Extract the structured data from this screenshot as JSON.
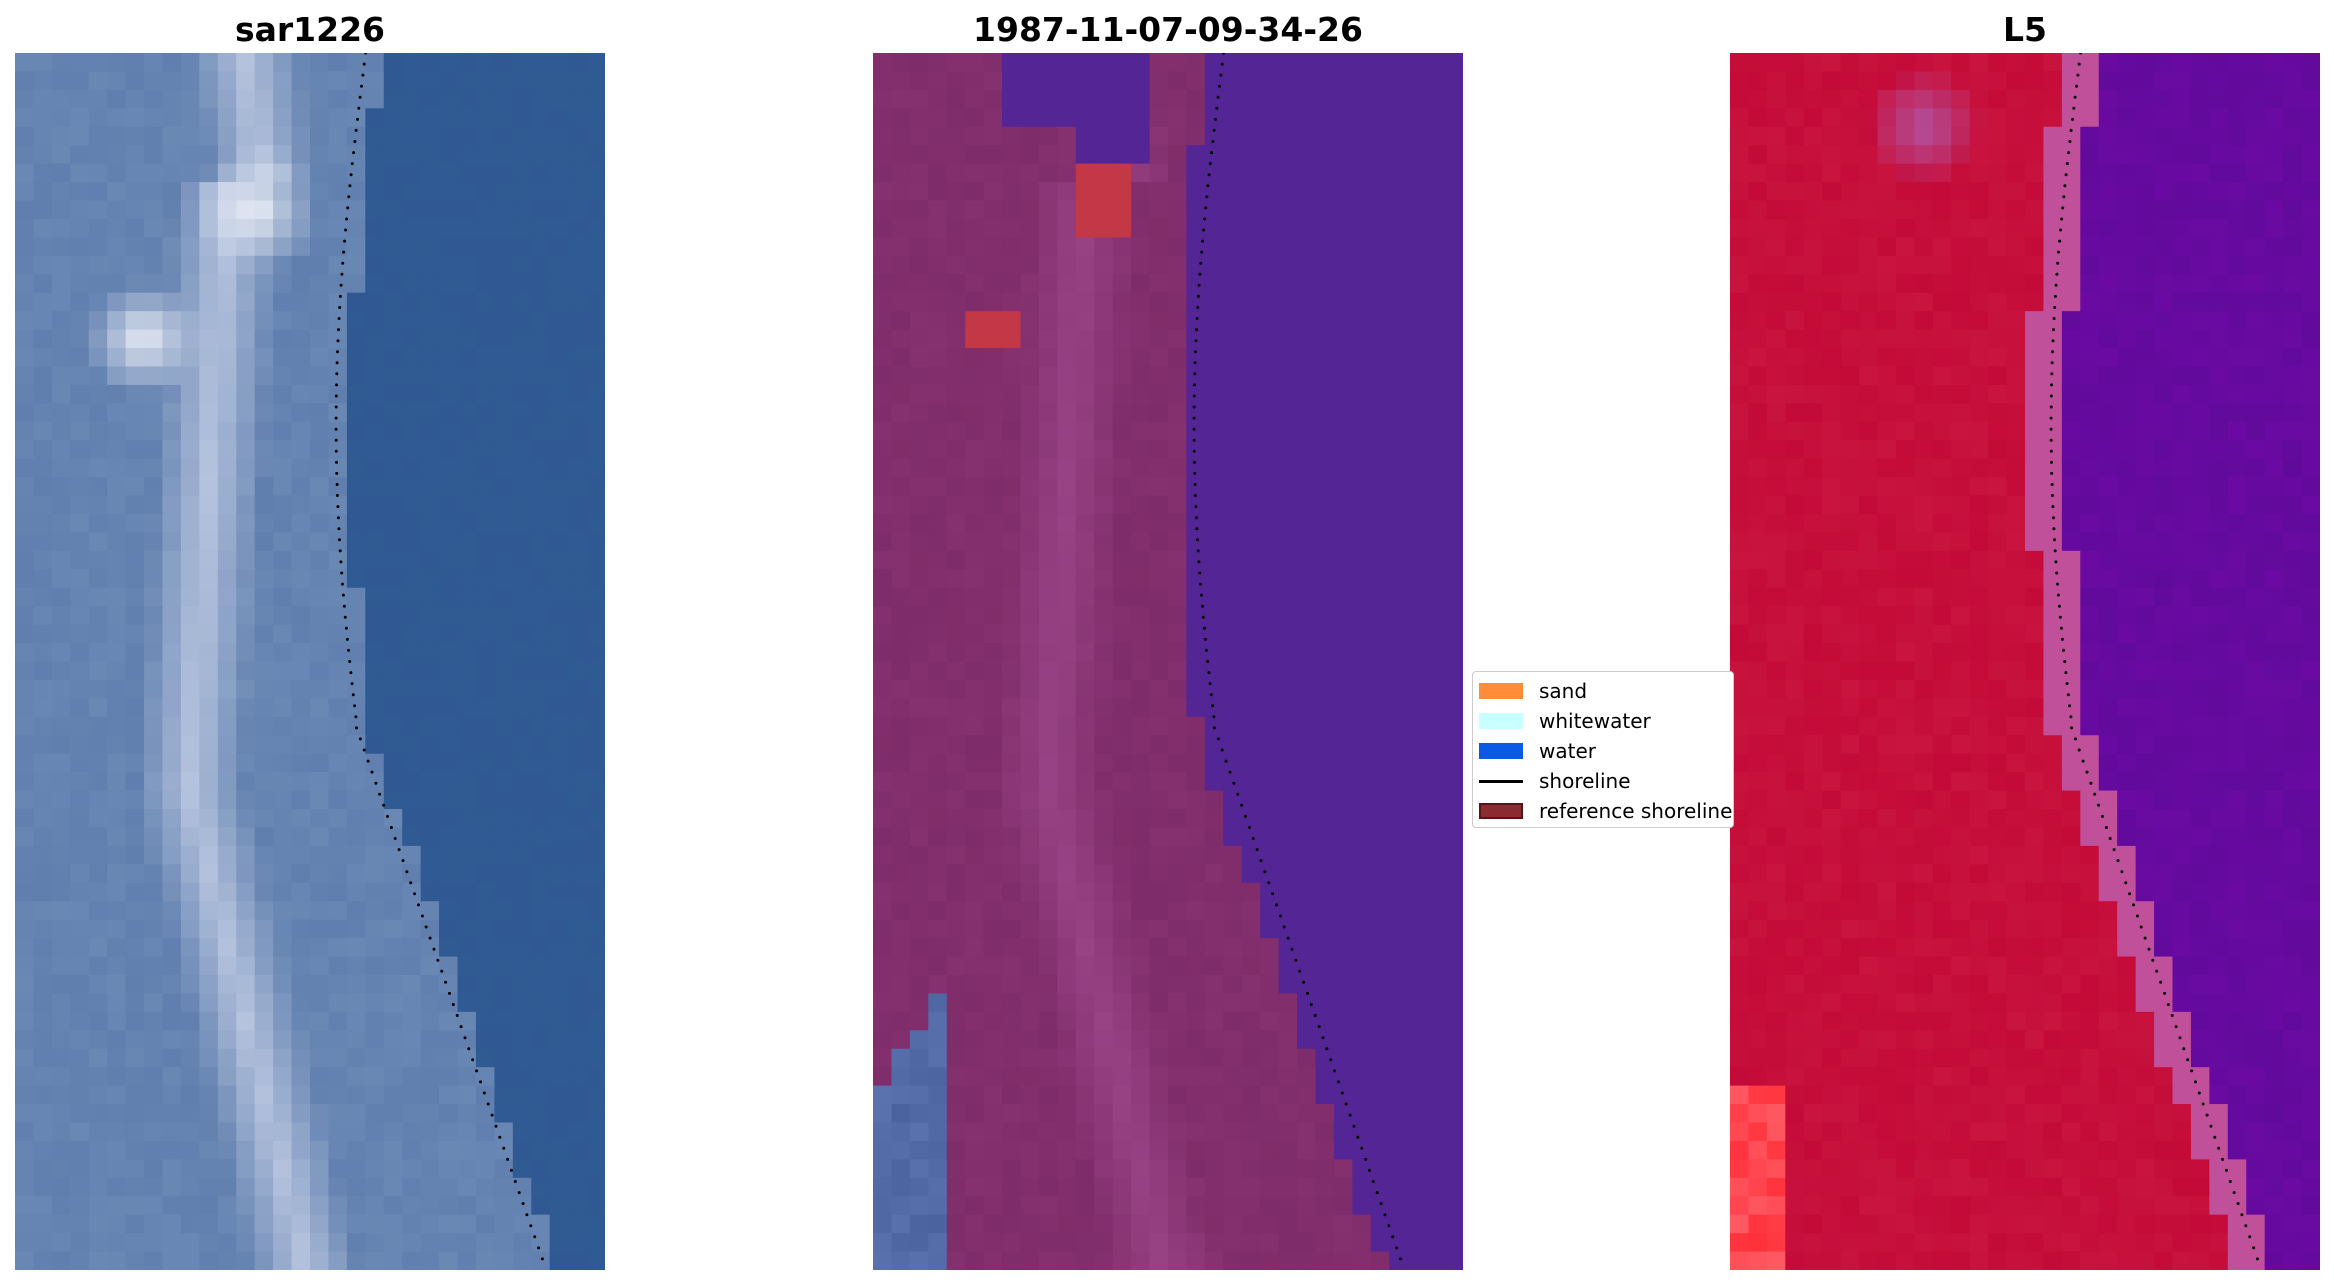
{
  "panels": [
    {
      "title": "sar1226",
      "kind": "rgb"
    },
    {
      "title": "1987-11-07-09-34-26",
      "kind": "classified"
    },
    {
      "title": "L5",
      "kind": "false-color"
    }
  ],
  "legend": {
    "items": [
      {
        "label": "sand",
        "type": "patch",
        "color": "#ff8c38"
      },
      {
        "label": "whitewater",
        "type": "patch",
        "color": "#c8ffff"
      },
      {
        "label": "water",
        "type": "patch",
        "color": "#0a5ae6"
      },
      {
        "label": "shoreline",
        "type": "line",
        "color": "#000000"
      },
      {
        "label": "reference shoreline",
        "type": "patch",
        "color": "#8b2a30",
        "edge": "#5a1418"
      }
    ]
  },
  "colors": {
    "rgb_water": "#2f5a92",
    "rgb_land": "#6a88b4",
    "rgb_bright": "#e8ecf6",
    "class_water": "#532595",
    "class_land": "#85306f",
    "class_land_light": "#a04b8e",
    "class_red": "#c33746",
    "fc_land": "#c40a38",
    "fc_water": "#6a0aa2",
    "fc_edge": "#c0509a"
  }
}
